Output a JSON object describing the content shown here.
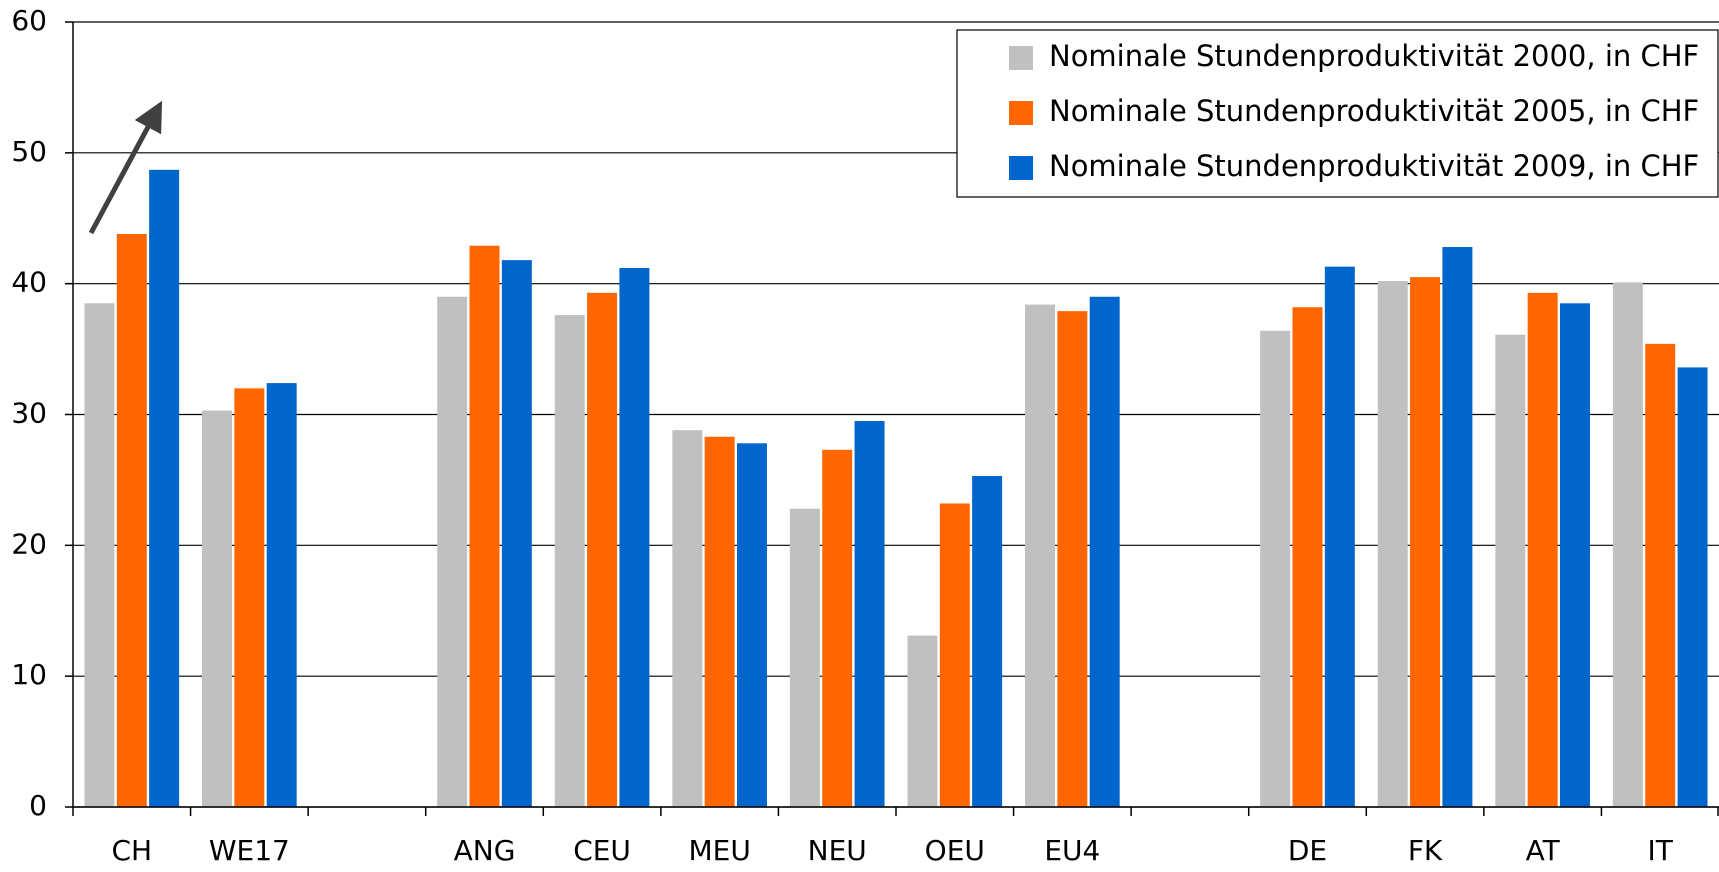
{
  "chart_data": {
    "type": "bar",
    "categories": [
      "CH",
      "WE17",
      null,
      "ANG",
      "CEU",
      "MEU",
      "NEU",
      "OEU",
      "EU4",
      null,
      "DE",
      "FK",
      "AT",
      "IT"
    ],
    "series": [
      {
        "name": "Nominale Stundenproduktivität 2000, in CHF",
        "color": "#c0c0c0",
        "values": [
          38.5,
          30.3,
          null,
          39.0,
          37.6,
          28.8,
          22.8,
          13.1,
          38.4,
          null,
          36.4,
          40.2,
          36.1,
          40.1
        ]
      },
      {
        "name": "Nominale Stundenproduktivität 2005, in CHF",
        "color": "#ff6600",
        "values": [
          43.8,
          32.0,
          null,
          42.9,
          39.3,
          28.3,
          27.3,
          23.2,
          37.9,
          null,
          38.2,
          40.5,
          39.3,
          35.4
        ]
      },
      {
        "name": "Nominale Stundenproduktivität 2009, in CHF",
        "color": "#0066cc",
        "values": [
          48.7,
          32.4,
          null,
          41.8,
          41.2,
          27.8,
          29.5,
          25.3,
          39.0,
          null,
          41.3,
          42.8,
          38.5,
          33.6
        ]
      }
    ],
    "ylim": [
      0,
      60
    ],
    "yticks": [
      0,
      10,
      20,
      30,
      40,
      50,
      60
    ],
    "grid": true,
    "legend": "top-right"
  }
}
